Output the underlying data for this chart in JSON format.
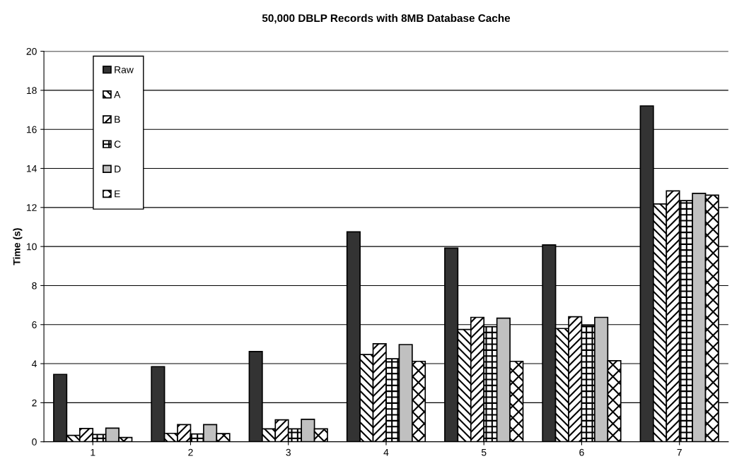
{
  "chart_data": {
    "type": "bar",
    "title": "50,000 DBLP Records with 8MB Database Cache",
    "ylabel": "Time (s)",
    "categories": [
      "1",
      "2",
      "3",
      "4",
      "5",
      "6",
      "7"
    ],
    "series": [
      {
        "name": "Raw",
        "color": "#333333",
        "values": [
          3.45,
          3.85,
          4.62,
          10.75,
          9.92,
          10.08,
          17.2
        ]
      },
      {
        "name": "A",
        "color": "#ffffff",
        "values": [
          0.33,
          0.43,
          0.66,
          4.47,
          5.75,
          5.8,
          12.18
        ]
      },
      {
        "name": "B",
        "color": "#ffffff",
        "values": [
          0.68,
          0.88,
          1.12,
          5.02,
          6.37,
          6.4,
          12.85
        ]
      },
      {
        "name": "C",
        "color": "#ffffff",
        "values": [
          0.37,
          0.4,
          0.66,
          4.25,
          5.9,
          5.95,
          12.35
        ]
      },
      {
        "name": "D",
        "color": "#c0c0c0",
        "values": [
          0.7,
          0.88,
          1.15,
          4.98,
          6.33,
          6.37,
          12.72
        ]
      },
      {
        "name": "E",
        "color": "#ffffff",
        "values": [
          0.22,
          0.42,
          0.66,
          4.12,
          4.12,
          4.15,
          12.63
        ]
      }
    ],
    "ylim": [
      0,
      20
    ],
    "yticks": [
      0,
      2,
      4,
      6,
      8,
      10,
      12,
      14,
      16,
      18,
      20
    ],
    "grid": "y",
    "legend": "top left"
  }
}
